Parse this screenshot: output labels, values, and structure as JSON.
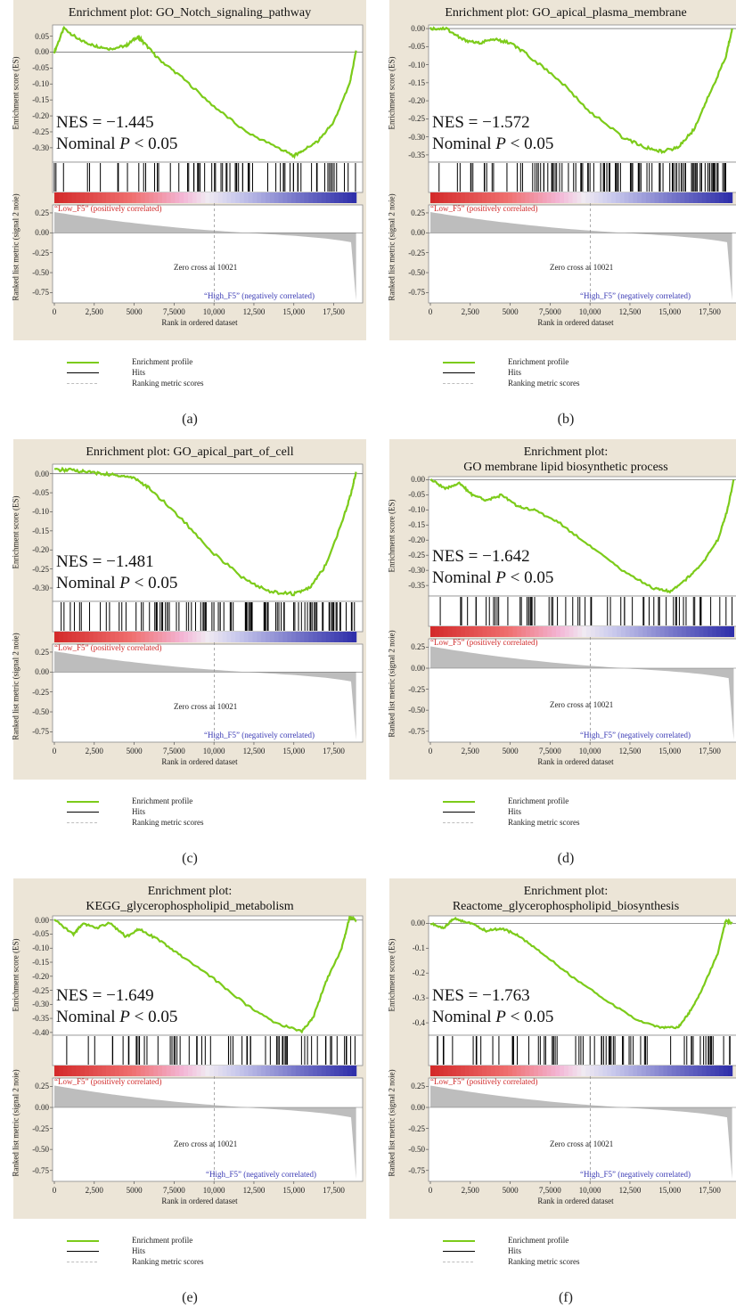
{
  "colors": {
    "panel_bg": "#ece5d7",
    "enrichment": "#7ccb1a",
    "hits": "#000000",
    "ranking": "#bdbdbd",
    "positive": "#d02a2a",
    "negative": "#3838b4"
  },
  "common": {
    "ylabel_es": "Enrichment score (ES)",
    "xlabel": "Rank in ordered dataset",
    "pos_label": "“Low_F5” (positively correlated)",
    "neg_label": "“High_F5” (negatively correlated)",
    "zero_cross": "Zero cross at 10021",
    "x_ticks": [
      "0",
      "2,500",
      "5000",
      "7,5000",
      "10,000",
      "12,500",
      "15,000",
      "17,500"
    ],
    "rank_ticks": [
      "0.25",
      "0.00",
      "-0.25",
      "-0.50",
      "-0.75"
    ],
    "legend": [
      "Enrichment profile",
      "Hits",
      "Ranking metric scores"
    ],
    "nes_prefix": "NES = ",
    "pval_label": "Nominal ",
    "pval_p": "P",
    "pval_suffix": " < 0.05"
  },
  "panels": [
    {
      "letter": "(a)",
      "title": [
        "Enrichment plot: GO_Notch_signaling_pathway"
      ],
      "rank_ylabel": "Ranked list metric (signal 2 noie)",
      "nes": "−1.445",
      "chart_data": {
        "type": "line",
        "title": "Enrichment plot: GO_Notch_signaling_pathway",
        "xlabel": "Rank in ordered dataset",
        "ylabel": "Enrichment score (ES)",
        "xlim": [
          0,
          19200
        ],
        "ylim": [
          -0.345,
          0.085
        ],
        "y_ticks": [
          0.05,
          0.0,
          -0.05,
          -0.1,
          -0.15,
          -0.2,
          -0.25,
          -0.3
        ],
        "x": [
          0,
          600,
          1500,
          2500,
          3500,
          4500,
          5200,
          5600,
          6500,
          8000,
          10000,
          12000,
          14000,
          15000,
          15500,
          16500,
          17500,
          18500,
          18900
        ],
        "es": [
          0.0,
          0.075,
          0.04,
          0.02,
          0.01,
          0.02,
          0.048,
          0.03,
          -0.02,
          -0.08,
          -0.17,
          -0.25,
          -0.3,
          -0.325,
          -0.31,
          -0.28,
          -0.22,
          -0.1,
          0.005
        ],
        "hit_density": 0.35
      }
    },
    {
      "letter": "(b)",
      "title": [
        "Enrichment plot: GO_apical_plasma_membrane"
      ],
      "rank_ylabel": "Ranked list metric (signal 2 noie)",
      "nes": "−1.572",
      "chart_data": {
        "type": "line",
        "title": "Enrichment plot: GO_apical_plasma_membrane",
        "xlabel": "Rank in ordered dataset",
        "ylabel": "Enrichment score (ES)",
        "xlim": [
          0,
          19200
        ],
        "ylim": [
          -0.37,
          0.01
        ],
        "y_ticks": [
          0.0,
          -0.05,
          -0.1,
          -0.15,
          -0.2,
          -0.25,
          -0.3,
          -0.35
        ],
        "x": [
          0,
          1000,
          2000,
          3000,
          4000,
          5000,
          6000,
          8000,
          10000,
          12000,
          13500,
          14500,
          15500,
          16500,
          17500,
          18500,
          18900
        ],
        "es": [
          0.0,
          0.0,
          -0.03,
          -0.04,
          -0.03,
          -0.04,
          -0.07,
          -0.14,
          -0.23,
          -0.3,
          -0.33,
          -0.34,
          -0.33,
          -0.28,
          -0.18,
          -0.08,
          0.0
        ],
        "hit_density": 0.6
      }
    },
    {
      "letter": "(c)",
      "title": [
        "Enrichment plot: GO_apical_part_of_cell"
      ],
      "rank_ylabel": "Ranked list metric (signal 2 noie)",
      "nes": "−1.481",
      "chart_data": {
        "type": "line",
        "title": "Enrichment plot: GO_apical_part_of_cell",
        "xlabel": "Rank in ordered dataset",
        "ylabel": "Enrichment score (ES)",
        "xlim": [
          0,
          19200
        ],
        "ylim": [
          -0.335,
          0.025
        ],
        "y_ticks": [
          0.0,
          -0.05,
          -0.1,
          -0.15,
          -0.2,
          -0.25,
          -0.3
        ],
        "x": [
          0,
          1000,
          2000,
          3000,
          4000,
          5000,
          6000,
          8000,
          10000,
          12000,
          13500,
          15000,
          16000,
          17000,
          18000,
          18600,
          18900
        ],
        "es": [
          0.01,
          0.01,
          0.005,
          0.0,
          -0.005,
          -0.01,
          -0.04,
          -0.12,
          -0.21,
          -0.28,
          -0.31,
          -0.315,
          -0.3,
          -0.24,
          -0.13,
          -0.05,
          0.005
        ],
        "hit_density": 0.6
      }
    },
    {
      "letter": "(d)",
      "title": [
        "Enrichment plot:",
        "GO membrane lipid biosynthetic process"
      ],
      "rank_ylabel": "Ranked list metric (signal 2 noie)",
      "nes": "−1.642",
      "chart_data": {
        "type": "line",
        "title": "Enrichment plot: GO membrane lipid biosynthetic process",
        "xlabel": "Rank in ordered dataset",
        "ylabel": "Enrichment score (ES)",
        "xlim": [
          0,
          19200
        ],
        "ylim": [
          -0.385,
          0.01
        ],
        "y_ticks": [
          0.0,
          -0.05,
          -0.1,
          -0.15,
          -0.2,
          -0.25,
          -0.3,
          -0.35
        ],
        "x": [
          0,
          1000,
          1800,
          2600,
          3500,
          4500,
          5500,
          6500,
          8000,
          10000,
          12000,
          14000,
          15000,
          16000,
          17000,
          18000,
          18600,
          19000
        ],
        "es": [
          0.0,
          -0.03,
          -0.01,
          -0.05,
          -0.07,
          -0.05,
          -0.09,
          -0.1,
          -0.14,
          -0.22,
          -0.3,
          -0.36,
          -0.37,
          -0.33,
          -0.28,
          -0.2,
          -0.1,
          0.0
        ],
        "hit_density": 0.3
      }
    },
    {
      "letter": "(e)",
      "title": [
        "Enrichment plot:",
        "KEGG_glycerophospholipid_metabolism"
      ],
      "rank_ylabel": "Ranked list metric (signal 2 noie)",
      "nes": "−1.649",
      "chart_data": {
        "type": "line",
        "title": "Enrichment plot: KEGG_glycerophospholipid_metabolism",
        "xlabel": "Rank in ordered dataset",
        "ylabel": "Enrichment score (ES)",
        "xlim": [
          0,
          19200
        ],
        "ylim": [
          -0.41,
          0.015
        ],
        "y_ticks": [
          0.0,
          -0.05,
          -0.1,
          -0.15,
          -0.2,
          -0.25,
          -0.3,
          -0.35,
          -0.4
        ],
        "x": [
          0,
          1200,
          1800,
          2600,
          3500,
          4500,
          5300,
          6500,
          8000,
          10000,
          12000,
          14000,
          15500,
          16200,
          17000,
          18000,
          18500,
          18900
        ],
        "es": [
          0.0,
          -0.05,
          -0.01,
          -0.03,
          -0.01,
          -0.06,
          -0.03,
          -0.07,
          -0.13,
          -0.21,
          -0.3,
          -0.37,
          -0.395,
          -0.35,
          -0.22,
          -0.1,
          0.01,
          0.0
        ],
        "hit_density": 0.3
      }
    },
    {
      "letter": "(f)",
      "title": [
        "Enrichment plot:",
        "Reactome_glycerophospholipid_biosynthesis"
      ],
      "rank_ylabel": "Ranked list metric (signal 2 noie)",
      "nes": "−1.763",
      "chart_data": {
        "type": "line",
        "title": "Enrichment plot: Reactome_glycerophospholipid_biosynthesis",
        "xlabel": "Rank in ordered dataset",
        "ylabel": "Enrichment score (ES)",
        "xlim": [
          0,
          19200
        ],
        "ylim": [
          -0.45,
          0.03
        ],
        "y_ticks": [
          0.0,
          -0.1,
          -0.2,
          -0.3,
          -0.4
        ],
        "x": [
          0,
          800,
          1500,
          2500,
          3500,
          4500,
          5500,
          7000,
          9000,
          11000,
          13000,
          14500,
          15500,
          16200,
          17000,
          18000,
          18500,
          18900
        ],
        "es": [
          0.0,
          -0.02,
          0.02,
          0.0,
          -0.03,
          -0.02,
          -0.05,
          -0.12,
          -0.22,
          -0.31,
          -0.39,
          -0.42,
          -0.42,
          -0.36,
          -0.27,
          -0.12,
          0.01,
          0.0
        ],
        "hit_density": 0.35
      }
    }
  ]
}
